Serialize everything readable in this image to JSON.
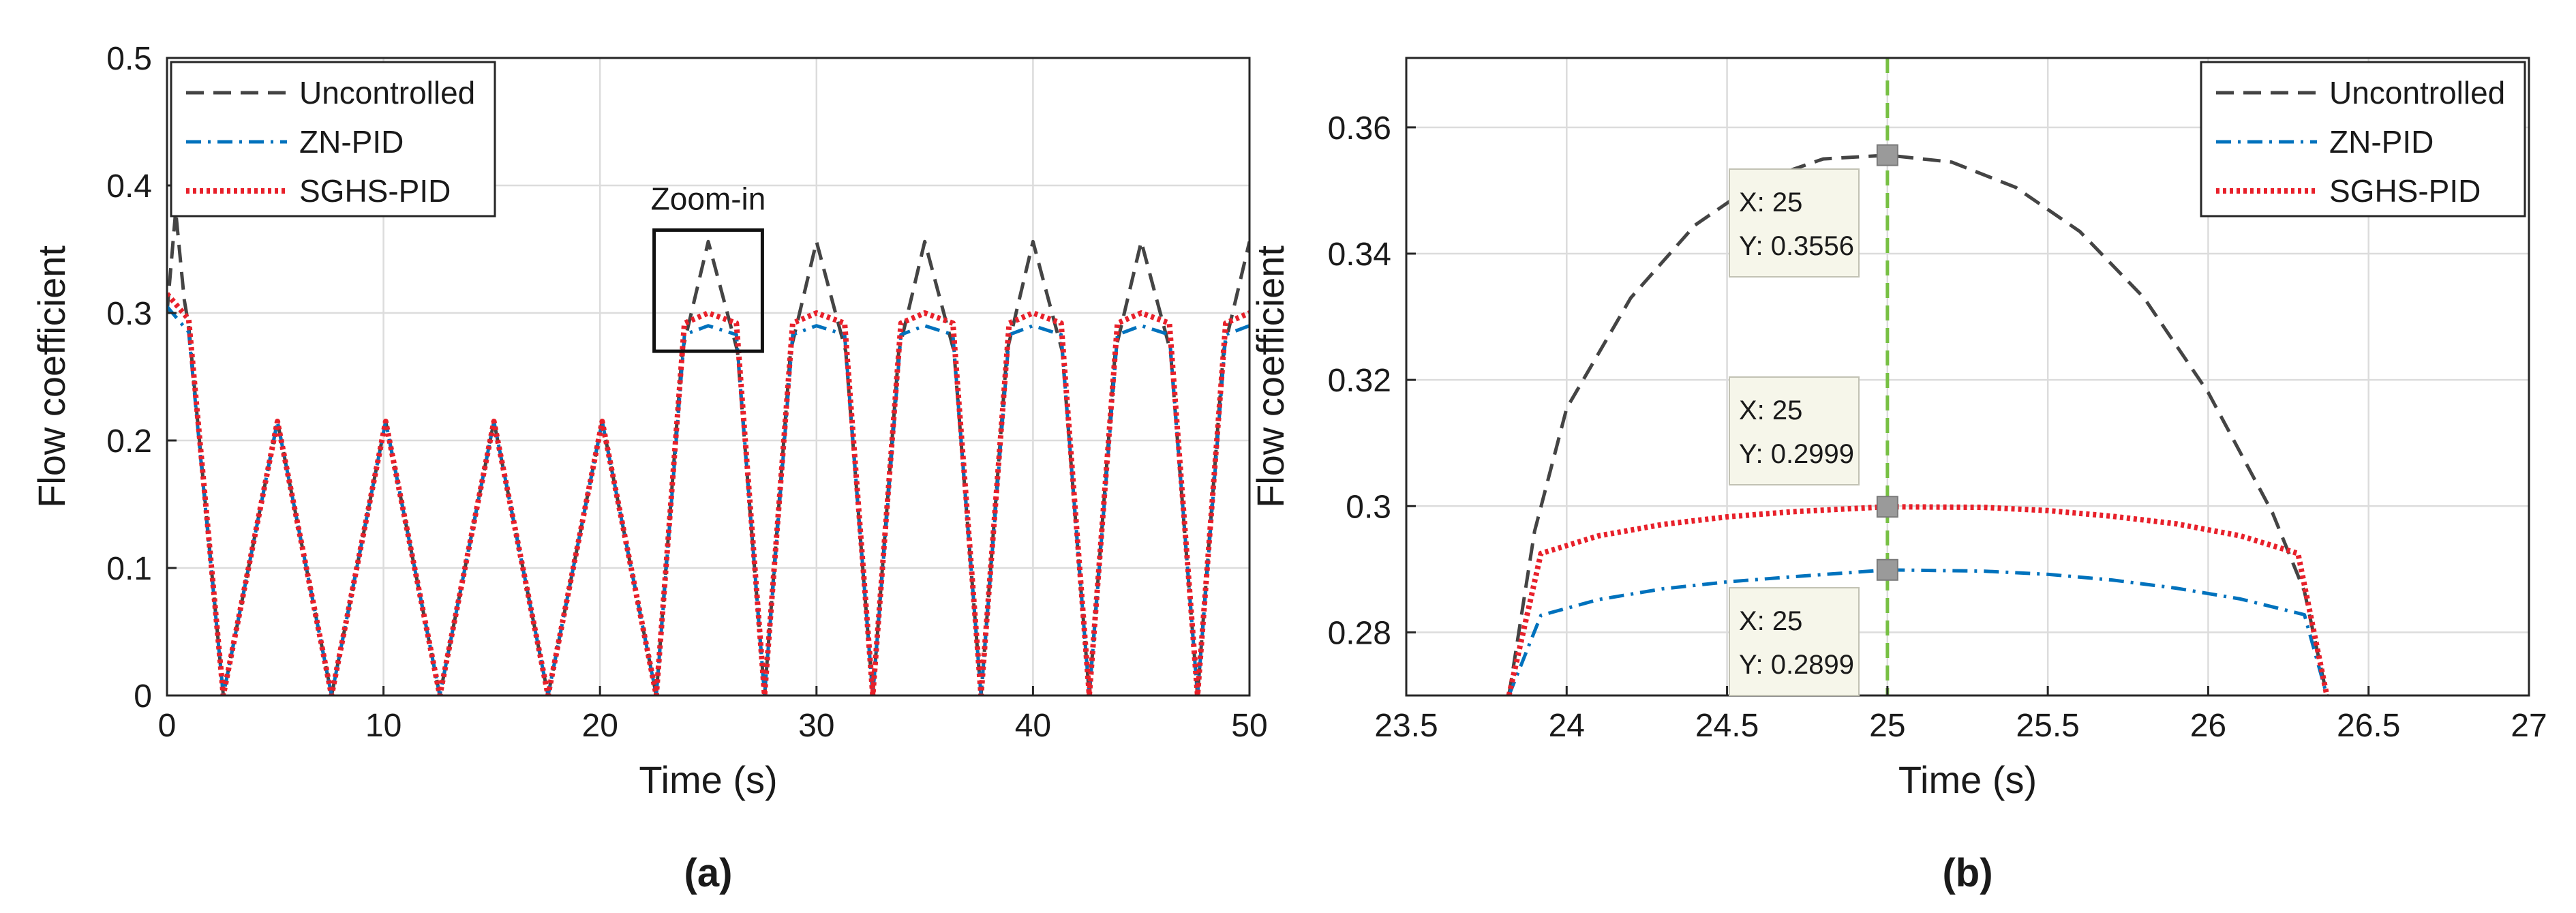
{
  "chart_data": [
    {
      "panel": "a",
      "panel_label": "(a)",
      "type": "line",
      "xlabel": "Time (s)",
      "ylabel": "Flow coefficient",
      "xlim": [
        0,
        50
      ],
      "ylim": [
        0,
        0.5
      ],
      "xticks": [
        0,
        10,
        20,
        30,
        40,
        50
      ],
      "xtick_labels": [
        "0",
        "10",
        "20",
        "30",
        "40",
        "50"
      ],
      "yticks": [
        0,
        0.1,
        0.2,
        0.3,
        0.4,
        0.5
      ],
      "ytick_labels": [
        "0",
        "0.1",
        "0.2",
        "0.3",
        "0.4",
        "0.5"
      ],
      "grid": true,
      "legend_position": "top-left",
      "legend": [
        "Uncontrolled",
        "ZN-PID",
        "SGHS-PID"
      ],
      "zoom_box": {
        "label": "Zoom-in",
        "x_range": [
          22.5,
          27.5
        ],
        "y_range": [
          0.27,
          0.365
        ]
      },
      "series": [
        {
          "name": "Uncontrolled",
          "color": "#444444",
          "dash": "dashed",
          "x": [
            0,
            0.4,
            0.8,
            1.0,
            2.6,
            5.1,
            7.6,
            10.1,
            12.6,
            15.1,
            17.6,
            20.1,
            22.6,
            23.8,
            25.0,
            26.35,
            27.6,
            28.8,
            30.0,
            31.35,
            32.6,
            33.8,
            35.0,
            36.35,
            37.6,
            38.8,
            40.0,
            41.35,
            42.6,
            43.8,
            45.0,
            46.35,
            47.6,
            48.8,
            50.0
          ],
          "y": [
            0.3,
            0.38,
            0.31,
            0.29,
            0.0,
            0.215,
            0.0,
            0.215,
            0.0,
            0.215,
            0.0,
            0.215,
            0.0,
            0.27,
            0.356,
            0.27,
            0.0,
            0.27,
            0.356,
            0.27,
            0.0,
            0.27,
            0.356,
            0.27,
            0.0,
            0.27,
            0.356,
            0.27,
            0.0,
            0.27,
            0.356,
            0.27,
            0.0,
            0.27,
            0.356
          ]
        },
        {
          "name": "ZN-PID",
          "color": "#0072BD",
          "dash": "dashdot",
          "x": [
            0,
            0.5,
            1.0,
            2.6,
            5.1,
            7.6,
            10.1,
            12.6,
            15.1,
            17.6,
            20.1,
            22.6,
            23.9,
            25.0,
            26.3,
            27.6,
            28.9,
            30.0,
            31.3,
            32.6,
            33.9,
            35.0,
            36.3,
            37.6,
            38.9,
            40.0,
            41.3,
            42.6,
            43.9,
            45.0,
            46.3,
            47.6,
            48.9,
            50.0
          ],
          "y": [
            0.305,
            0.295,
            0.285,
            0.0,
            0.215,
            0.0,
            0.215,
            0.0,
            0.215,
            0.0,
            0.215,
            0.0,
            0.283,
            0.29,
            0.283,
            0.0,
            0.283,
            0.29,
            0.283,
            0.0,
            0.283,
            0.29,
            0.283,
            0.0,
            0.283,
            0.29,
            0.283,
            0.0,
            0.283,
            0.29,
            0.283,
            0.0,
            0.283,
            0.29
          ]
        },
        {
          "name": "SGHS-PID",
          "color": "#E8202A",
          "dash": "dotted",
          "x": [
            0,
            0.5,
            1.0,
            2.6,
            5.1,
            7.6,
            10.1,
            12.6,
            15.1,
            17.6,
            20.1,
            22.6,
            23.9,
            25.0,
            26.3,
            27.6,
            28.9,
            30.0,
            31.3,
            32.6,
            33.9,
            35.0,
            36.3,
            37.6,
            38.9,
            40.0,
            41.3,
            42.6,
            43.9,
            45.0,
            46.3,
            47.6,
            48.9,
            50.0
          ],
          "y": [
            0.315,
            0.305,
            0.295,
            0.0,
            0.215,
            0.0,
            0.215,
            0.0,
            0.215,
            0.0,
            0.215,
            0.0,
            0.292,
            0.3,
            0.292,
            0.0,
            0.292,
            0.3,
            0.292,
            0.0,
            0.292,
            0.3,
            0.292,
            0.0,
            0.292,
            0.3,
            0.292,
            0.0,
            0.292,
            0.3,
            0.292,
            0.0,
            0.292,
            0.3
          ]
        }
      ]
    },
    {
      "panel": "b",
      "panel_label": "(b)",
      "type": "line",
      "xlabel": "Time (s)",
      "ylabel": "Flow coefficient",
      "xlim": [
        23.5,
        27
      ],
      "ylim": [
        0.27,
        0.371
      ],
      "xticks": [
        23.5,
        24,
        24.5,
        25,
        25.5,
        26,
        26.5,
        27
      ],
      "xtick_labels": [
        "23.5",
        "24",
        "24.5",
        "25",
        "25.5",
        "26",
        "26.5",
        "27"
      ],
      "yticks": [
        0.28,
        0.3,
        0.32,
        0.34,
        0.36
      ],
      "ytick_labels": [
        "0.28",
        "0.3",
        "0.32",
        "0.34",
        "0.36"
      ],
      "grid": true,
      "legend_position": "top-right",
      "legend": [
        "Uncontrolled",
        "ZN-PID",
        "SGHS-PID"
      ],
      "vline": {
        "x": 25,
        "color": "#77C043"
      },
      "series": [
        {
          "name": "Uncontrolled",
          "color": "#444444",
          "dash": "dashed",
          "x": [
            23.82,
            23.9,
            24.0,
            24.2,
            24.4,
            24.6,
            24.8,
            25.0,
            25.2,
            25.4,
            25.6,
            25.8,
            26.0,
            26.2,
            26.3,
            26.37
          ],
          "y": [
            0.27,
            0.296,
            0.3155,
            0.333,
            0.3445,
            0.3515,
            0.355,
            0.3556,
            0.3545,
            0.3505,
            0.3435,
            0.333,
            0.318,
            0.299,
            0.2865,
            0.27
          ]
        },
        {
          "name": "ZN-PID",
          "color": "#0072BD",
          "dash": "dashdot",
          "x": [
            23.82,
            23.92,
            24.1,
            24.3,
            24.5,
            24.7,
            25.0,
            25.3,
            25.5,
            25.7,
            25.9,
            26.1,
            26.3,
            26.37
          ],
          "y": [
            0.27,
            0.2827,
            0.2852,
            0.2869,
            0.288,
            0.2888,
            0.2899,
            0.2897,
            0.2892,
            0.2883,
            0.287,
            0.2853,
            0.2828,
            0.27
          ]
        },
        {
          "name": "SGHS-PID",
          "color": "#E8202A",
          "dash": "dotted",
          "x": [
            23.82,
            23.92,
            24.1,
            24.3,
            24.5,
            24.7,
            25.0,
            25.3,
            25.5,
            25.7,
            25.9,
            26.1,
            26.28,
            26.37
          ],
          "y": [
            0.27,
            0.2925,
            0.2953,
            0.2971,
            0.2983,
            0.2991,
            0.2999,
            0.2998,
            0.2993,
            0.2984,
            0.2972,
            0.2953,
            0.2925,
            0.27
          ]
        }
      ],
      "datatips": [
        {
          "x_text": "X: 25",
          "y_text": "Y: 0.3556",
          "point": [
            25,
            0.3556
          ]
        },
        {
          "x_text": "X: 25",
          "y_text": "Y: 0.2999",
          "point": [
            25,
            0.2999
          ]
        },
        {
          "x_text": "X: 25",
          "y_text": "Y: 0.2899",
          "point": [
            25,
            0.2899
          ]
        }
      ]
    }
  ]
}
